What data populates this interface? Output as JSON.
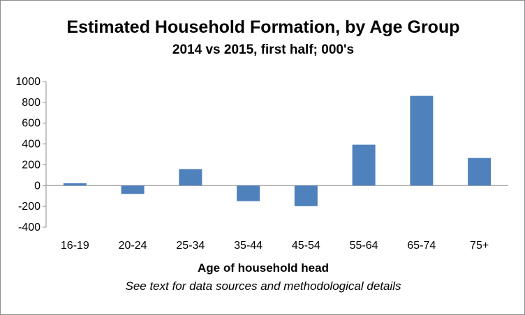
{
  "chart_data": {
    "type": "bar",
    "title": "Estimated Household Formation, by Age Group",
    "subtitle": "2014 vs 2015, first half; 000's",
    "xlabel": "Age of household head",
    "note": "See text for data sources and methodological details",
    "categories": [
      "16-19",
      "20-24",
      "25-34",
      "35-44",
      "45-54",
      "55-64",
      "65-74",
      "75+"
    ],
    "values": [
      22,
      -80,
      158,
      -150,
      -198,
      393,
      862,
      265
    ],
    "ylim": [
      -400,
      1000
    ],
    "yticks": [
      -400,
      -200,
      0,
      200,
      400,
      600,
      800,
      1000
    ],
    "ytick_labels": [
      "-400",
      "-200",
      "0",
      "200",
      "400",
      "600",
      "800",
      "1000"
    ],
    "bar_color": "#4f81bd",
    "grid": false,
    "legend": "none"
  }
}
